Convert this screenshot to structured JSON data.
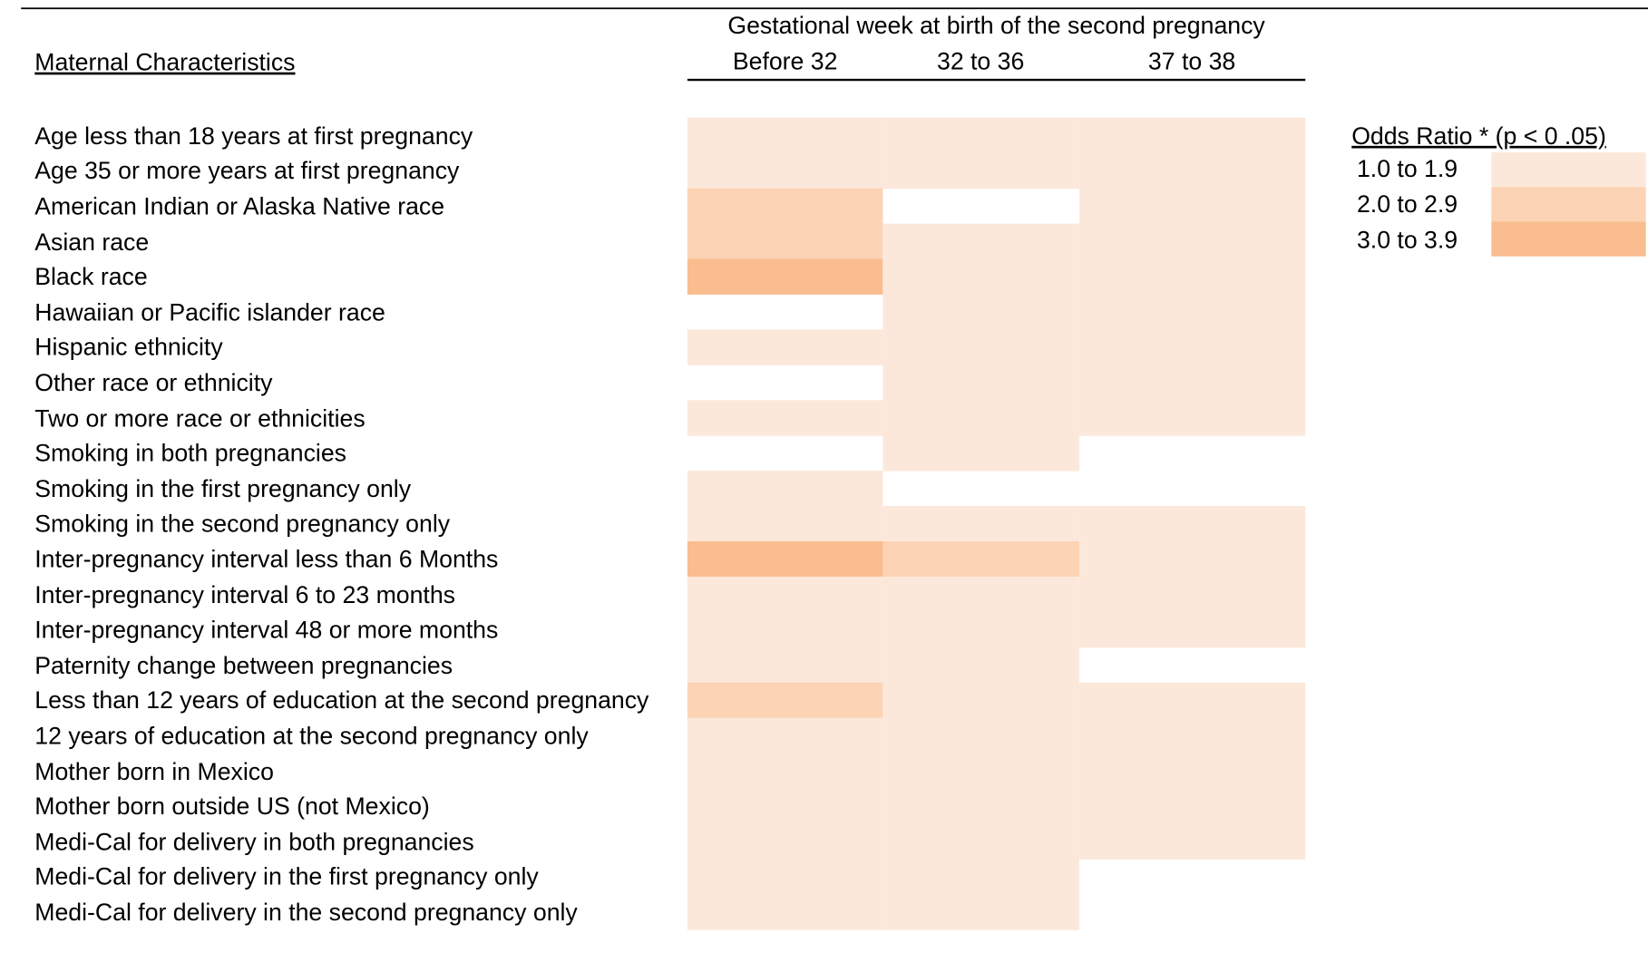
{
  "header": {
    "title": "Gestational week at birth of the second pregnancy",
    "row_header": "Maternal Characteristics",
    "columns": [
      "Before 32",
      "32 to 36",
      "37 to 38"
    ]
  },
  "legend": {
    "title": "Odds Ratio * (p < 0 .05)",
    "items": [
      {
        "label": "1.0 to 1.9",
        "color": "#fce8da"
      },
      {
        "label": "2.0 to 2.9",
        "color": "#fcd3b4"
      },
      {
        "label": "3.0 to 3.9",
        "color": "#f9bd8f"
      }
    ]
  },
  "rows": [
    {
      "label": "Age less than 18 years at first pregnancy",
      "cells": [
        "#fce8da",
        "#fce8da",
        "#fce8da"
      ]
    },
    {
      "label": "Age 35 or more years at first pregnancy",
      "cells": [
        "#fce8da",
        "#fce8da",
        "#fce8da"
      ]
    },
    {
      "label": "American Indian or Alaska Native race",
      "cells": [
        "#fcd3b4",
        null,
        "#fce8da"
      ]
    },
    {
      "label": "Asian race",
      "cells": [
        "#fcd3b4",
        "#fce8da",
        "#fce8da"
      ]
    },
    {
      "label": "Black race",
      "cells": [
        "#f9bd8f",
        "#fce8da",
        "#fce8da"
      ]
    },
    {
      "label": "Hawaiian or Pacific islander race",
      "cells": [
        null,
        "#fce8da",
        "#fce8da"
      ]
    },
    {
      "label": "Hispanic ethnicity",
      "cells": [
        "#fce8da",
        "#fce8da",
        "#fce8da"
      ]
    },
    {
      "label": "Other race or ethnicity",
      "cells": [
        null,
        "#fce8da",
        "#fce8da"
      ]
    },
    {
      "label": "Two or more race or ethnicities",
      "cells": [
        "#fce8da",
        "#fce8da",
        "#fce8da"
      ]
    },
    {
      "label": "Smoking in both pregnancies",
      "cells": [
        null,
        "#fce8da",
        null
      ]
    },
    {
      "label": "Smoking in the first pregnancy only",
      "cells": [
        "#fce8da",
        null,
        null
      ]
    },
    {
      "label": "Smoking in the second pregnancy only",
      "cells": [
        "#fce8da",
        "#fce8da",
        "#fce8da"
      ]
    },
    {
      "label": "Inter-pregnancy interval less than 6 Months",
      "cells": [
        "#f9bd8f",
        "#fcd3b4",
        "#fce8da"
      ]
    },
    {
      "label": "Inter-pregnancy interval 6 to 23 months",
      "cells": [
        "#fce8da",
        "#fce8da",
        "#fce8da"
      ]
    },
    {
      "label": "Inter-pregnancy interval 48 or more months",
      "cells": [
        "#fce8da",
        "#fce8da",
        "#fce8da"
      ]
    },
    {
      "label": "Paternity change between pregnancies",
      "cells": [
        "#fce8da",
        "#fce8da",
        null
      ]
    },
    {
      "label": "Less than 12 years of education at the second pregnancy",
      "cells": [
        "#fcd3b4",
        "#fce8da",
        "#fce8da"
      ]
    },
    {
      "label": "12 years of education at the second pregnancy only",
      "cells": [
        "#fce8da",
        "#fce8da",
        "#fce8da"
      ]
    },
    {
      "label": "Mother born in Mexico",
      "cells": [
        "#fce8da",
        "#fce8da",
        "#fce8da"
      ]
    },
    {
      "label": "Mother born outside US (not Mexico)",
      "cells": [
        "#fce8da",
        "#fce8da",
        "#fce8da"
      ]
    },
    {
      "label": "Medi-Cal for delivery in both pregnancies",
      "cells": [
        "#fce8da",
        "#fce8da",
        "#fce8da"
      ]
    },
    {
      "label": "Medi-Cal for delivery in the first pregnancy only",
      "cells": [
        "#fce8da",
        "#fce8da",
        null
      ]
    },
    {
      "label": "Medi-Cal for delivery in the second pregnancy only",
      "cells": [
        "#fce8da",
        "#fce8da",
        null
      ]
    }
  ]
}
